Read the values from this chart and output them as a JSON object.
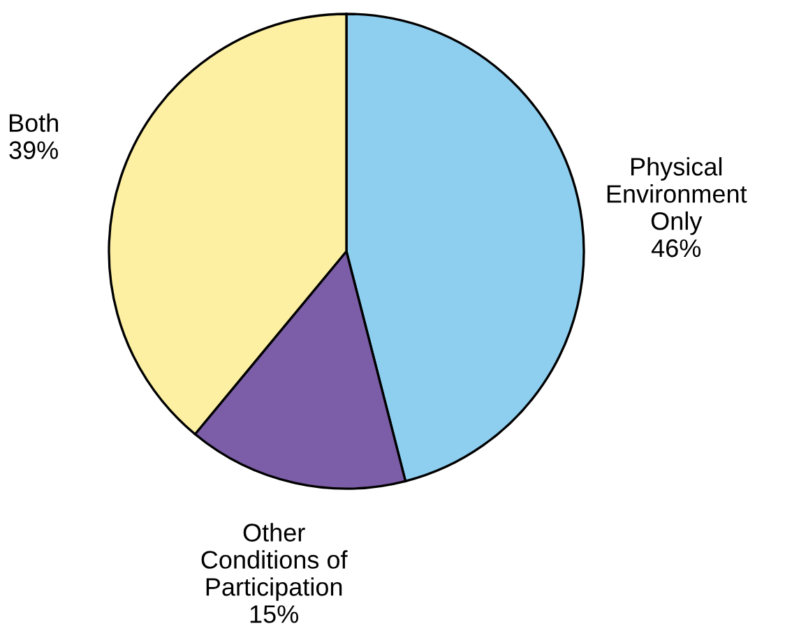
{
  "chart_data": {
    "type": "pie",
    "categories": [
      "Physical\nEnvironment\nOnly",
      "Other\nConditions of\nParticipation",
      "Both"
    ],
    "values": [
      46,
      15,
      39
    ],
    "value_labels": [
      "46%",
      "15%",
      "39%"
    ],
    "colors": [
      "#8ecff0",
      "#7b5ea7",
      "#fdf0a2"
    ]
  }
}
